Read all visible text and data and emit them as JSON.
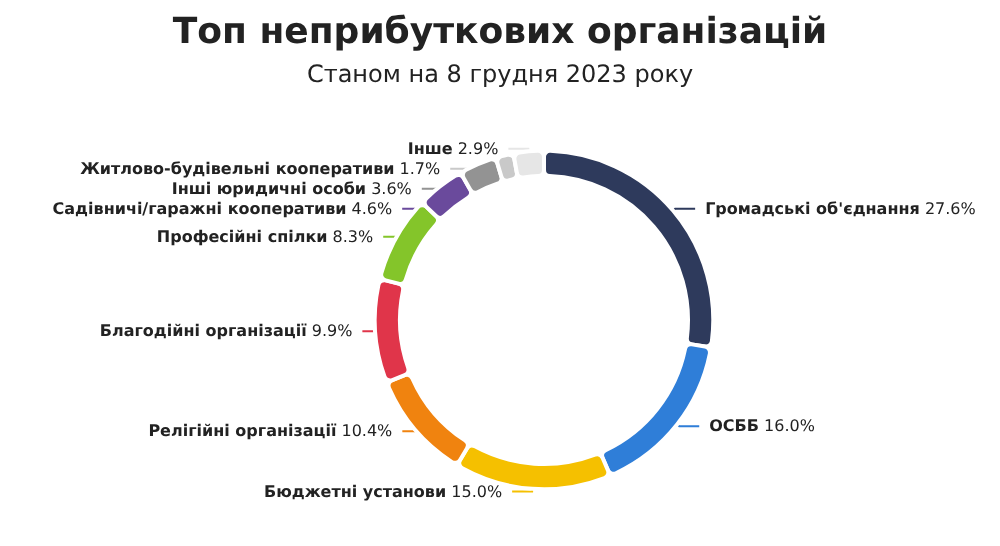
{
  "chart_data": {
    "type": "donut",
    "title": "Топ неприбуткових організацій",
    "subtitle": "Станом на 8 грудня 2023 року",
    "categories": [
      "Громадські об'єднання",
      "ОСББ",
      "Бюджетні установи",
      "Релігійні організації",
      "Благодійні організації",
      "Професійні спілки",
      "Садівничі/гаражні кооперативи",
      "Інші юридичні особи",
      "Житлово-будівельні кооперативи",
      "Інше"
    ],
    "values": [
      27.6,
      16.0,
      15.0,
      10.4,
      9.9,
      8.3,
      4.6,
      3.6,
      1.7,
      2.9
    ],
    "colors": [
      "#2e3a5c",
      "#2f7ed8",
      "#f5c000",
      "#f0830f",
      "#e0354a",
      "#84c52a",
      "#6a4a9c",
      "#939393",
      "#c9c9c9",
      "#e6e6e6"
    ],
    "value_labels": [
      "27.6%",
      "16.0%",
      "15.0%",
      "10.4%",
      "9.9%",
      "8.3%",
      "4.6%",
      "3.6%",
      "1.7%",
      "2.9%"
    ],
    "legend": false
  }
}
